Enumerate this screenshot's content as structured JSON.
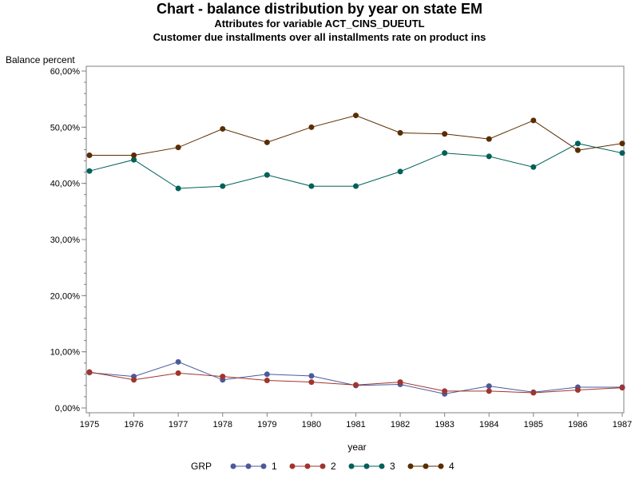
{
  "chart_data": {
    "type": "line",
    "title": "Chart - balance distribution by year on state EM",
    "subtitles": [
      "Attributes for variable ACT_CINS_DUEUTL",
      "Customer due installments over all installments rate on product ins"
    ],
    "ylabel": "Balance percent",
    "xlabel": "year",
    "ylim": [
      0,
      60
    ],
    "yticks": [
      "0,00%",
      "10,00%",
      "20,00%",
      "30,00%",
      "40,00%",
      "50,00%",
      "60,00%"
    ],
    "x": [
      "1975",
      "1976",
      "1977",
      "1978",
      "1979",
      "1980",
      "1981",
      "1982",
      "1983",
      "1984",
      "1985",
      "1986",
      "1987"
    ],
    "legend_title": "GRP",
    "legend_position": "bottom",
    "grid": false,
    "series": [
      {
        "name": "1",
        "color": "#4b5a9a",
        "values": [
          6.3,
          5.6,
          8.2,
          5.0,
          6.0,
          5.7,
          4.0,
          4.2,
          2.5,
          3.9,
          2.8,
          3.7,
          3.7
        ]
      },
      {
        "name": "2",
        "color": "#a0352e",
        "values": [
          6.4,
          5.0,
          6.2,
          5.6,
          4.9,
          4.6,
          4.1,
          4.6,
          3.0,
          3.0,
          2.7,
          3.2,
          3.6
        ]
      },
      {
        "name": "3",
        "color": "#00605a",
        "values": [
          42.2,
          44.2,
          39.1,
          39.5,
          41.5,
          39.5,
          39.5,
          42.1,
          45.4,
          44.8,
          42.9,
          47.1,
          45.4
        ]
      },
      {
        "name": "4",
        "color": "#5a2d00",
        "values": [
          45.0,
          45.0,
          46.4,
          49.7,
          47.3,
          50.0,
          52.1,
          49.0,
          48.8,
          47.9,
          51.2,
          45.9,
          47.1
        ]
      }
    ]
  }
}
